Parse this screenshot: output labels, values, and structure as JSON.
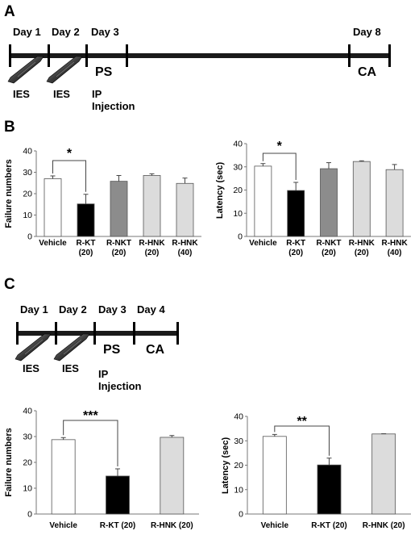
{
  "panels": {
    "a": "A",
    "b": "B",
    "c": "C"
  },
  "timeline_a": {
    "days": [
      "Day 1",
      "Day 2",
      "Day 3",
      "Day 8"
    ],
    "segments": [
      "PS",
      "CA"
    ],
    "ies_labels": [
      "IES",
      "IES"
    ],
    "injection": [
      "IP",
      "Injection"
    ]
  },
  "timeline_c": {
    "days": [
      "Day 1",
      "Day 2",
      "Day 3",
      "Day 4"
    ],
    "segments": [
      "PS",
      "CA"
    ],
    "ies_labels": [
      "IES",
      "IES"
    ],
    "injection": [
      "IP",
      "Injection"
    ]
  },
  "colors": {
    "white": "#ffffff",
    "black": "#000000",
    "gray": "#8c8c8c",
    "light": "#dcdcdc"
  },
  "chart_data": [
    {
      "id": "b_left",
      "type": "bar",
      "ylabel": "Failure numbers",
      "ylim": [
        0,
        40
      ],
      "yticks": [
        "0",
        "10",
        "20",
        "30",
        "40"
      ],
      "categories": [
        [
          "Vehicle"
        ],
        [
          "R-KT",
          "(20)"
        ],
        [
          "R-NKT",
          "(20)"
        ],
        [
          "R-HNK",
          "(20)"
        ],
        [
          "R-HNK",
          "(40)"
        ]
      ],
      "values": [
        27,
        15.2,
        25.8,
        28.5,
        24.8
      ],
      "errors": [
        1.3,
        4.5,
        2.7,
        0.8,
        2.5
      ],
      "fills": [
        "white",
        "black",
        "gray",
        "light",
        "light"
      ],
      "significance": {
        "from": 0,
        "to": 1,
        "label": "*"
      }
    },
    {
      "id": "b_right",
      "type": "bar",
      "ylabel": "Latency (sec)",
      "ylim": [
        0,
        40
      ],
      "yticks": [
        "0",
        "10",
        "20",
        "30",
        "40"
      ],
      "categories": [
        [
          "Vehicle"
        ],
        [
          "R-KT",
          "(20)"
        ],
        [
          "R-NKT",
          "(20)"
        ],
        [
          "R-HNK",
          "(20)"
        ],
        [
          "R-HNK",
          "(40)"
        ]
      ],
      "values": [
        30.3,
        19.8,
        29.2,
        32.3,
        28.8
      ],
      "errors": [
        1.1,
        3.5,
        2.6,
        0.3,
        2.2
      ],
      "fills": [
        "white",
        "black",
        "gray",
        "light",
        "light"
      ],
      "significance": {
        "from": 0,
        "to": 1,
        "label": "*"
      }
    },
    {
      "id": "c_left",
      "type": "bar",
      "ylabel": "Failure numbers",
      "ylim": [
        0,
        40
      ],
      "yticks": [
        "0",
        "10",
        "20",
        "30",
        "40"
      ],
      "categories": [
        [
          "Vehicle"
        ],
        [
          "R-KT (20)"
        ],
        [
          "R-HNK (20)"
        ]
      ],
      "values": [
        28.8,
        14.7,
        29.7
      ],
      "errors": [
        0.8,
        2.8,
        0.7
      ],
      "fills": [
        "white",
        "black",
        "light"
      ],
      "significance": {
        "from": 0,
        "to": 1,
        "label": "***"
      }
    },
    {
      "id": "c_right",
      "type": "bar",
      "ylabel": "Latency (sec)",
      "ylim": [
        0,
        40
      ],
      "yticks": [
        "0",
        "10",
        "20",
        "30",
        "40"
      ],
      "categories": [
        [
          "Vehicle"
        ],
        [
          "R-KT (20)"
        ],
        [
          "R-HNK (20)"
        ]
      ],
      "values": [
        31.8,
        20.1,
        32.8
      ],
      "errors": [
        0.8,
        2.8,
        0.1
      ],
      "fills": [
        "white",
        "black",
        "light"
      ],
      "significance": {
        "from": 0,
        "to": 1,
        "label": "**"
      }
    }
  ]
}
